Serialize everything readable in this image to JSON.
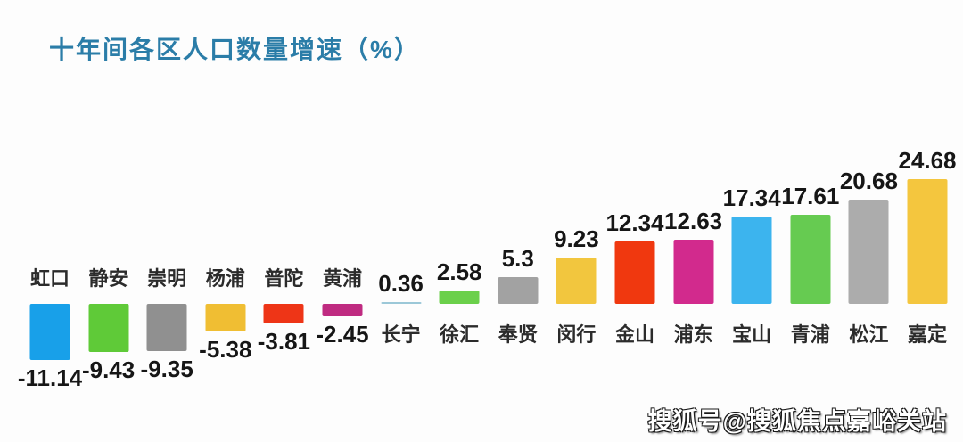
{
  "colors": {
    "title": "#2b7da8",
    "value_text": "#161616",
    "category_text": "#2b2b2b",
    "background": "#fdfdfd"
  },
  "watermark": {
    "text": "搜狐号@搜狐焦点嘉峪关站"
  },
  "chart_data": {
    "type": "bar",
    "title": "十年间各区人口数量增速（%）",
    "xlabel": "",
    "ylabel": "",
    "grid": false,
    "legend": false,
    "baseline": 0,
    "ylim": [
      -12,
      26
    ],
    "categories": [
      "虹口",
      "静安",
      "崇明",
      "杨浦",
      "普陀",
      "黄浦",
      "长宁",
      "徐汇",
      "奉贤",
      "闵行",
      "金山",
      "浦东",
      "宝山",
      "青浦",
      "松江",
      "嘉定"
    ],
    "values": [
      -11.14,
      -9.43,
      -9.35,
      -5.38,
      -3.81,
      -2.45,
      0.36,
      2.58,
      5.3,
      9.23,
      12.34,
      12.63,
      17.34,
      17.61,
      20.68,
      24.68
    ],
    "value_labels": [
      "-11.14",
      "-9.43",
      "-9.35",
      "-5.38",
      "-3.81",
      "-2.45",
      "0.36",
      "2.58",
      "5.3",
      "9.23",
      "12.34",
      "12.63",
      "17.34",
      "17.61",
      "20.68",
      "24.68"
    ],
    "bar_colors": [
      "#18a0e9",
      "#5fca38",
      "#909090",
      "#f0be33",
      "#ee3517",
      "#bf2b81",
      "#9cc8d8",
      "#6bd04b",
      "#a2a2a2",
      "#f2c63e",
      "#f0380f",
      "#d22a8d",
      "#3cb4ee",
      "#66cb51",
      "#acacac",
      "#f4c63e"
    ]
  }
}
